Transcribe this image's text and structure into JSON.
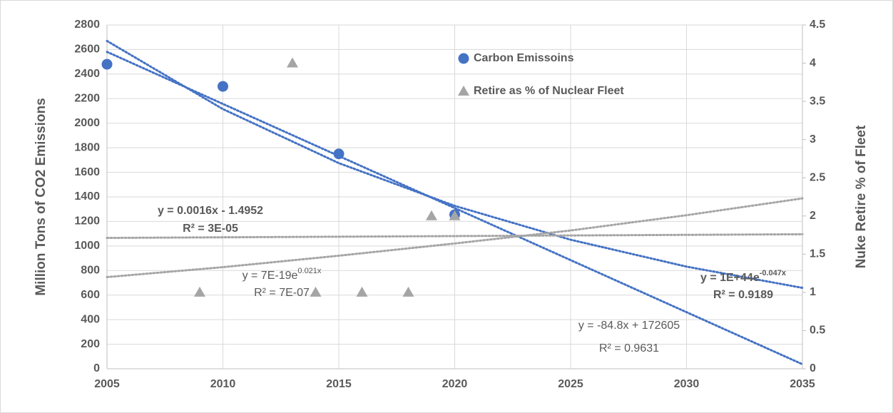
{
  "chart_data": {
    "type": "scatter",
    "y_label": "Million Tons of CO2 Emissions",
    "y2_label": "Nuke Retire % of Fleet",
    "xlim": [
      2005,
      2035
    ],
    "xticks": [
      2005,
      2010,
      2015,
      2020,
      2025,
      2030,
      2035
    ],
    "ylim": [
      0,
      2800
    ],
    "yticks": [
      0,
      200,
      400,
      600,
      800,
      1000,
      1200,
      1400,
      1600,
      1800,
      2000,
      2200,
      2400,
      2600,
      2800
    ],
    "y2lim": [
      0,
      4.5
    ],
    "y2ticks": [
      0,
      0.5,
      1,
      1.5,
      2,
      2.5,
      3,
      3.5,
      4,
      4.5
    ],
    "grid": true,
    "series": [
      {
        "name": "Carbon Emissoins",
        "color": "#4472c4",
        "marker": "circle",
        "x": [
          2005,
          2010,
          2015,
          2020
        ],
        "values": [
          2480,
          2300,
          1750,
          1255
        ]
      },
      {
        "name": "Retire as % of Nuclear Fleet",
        "color": "#a5a5a5",
        "marker": "triangle",
        "axis": "y2",
        "x": [
          2009,
          2013,
          2014,
          2016,
          2018,
          2019,
          2020
        ],
        "values": [
          1,
          4,
          1,
          1,
          1,
          2,
          2
        ]
      }
    ],
    "trendlines": [
      {
        "color": "#4472c4",
        "x": [
          2005,
          2035
        ],
        "values": [
          2581,
          37
        ]
      },
      {
        "color": "#4472c4",
        "x": [
          2005,
          2010,
          2015,
          2020,
          2025,
          2030,
          2035
        ],
        "values": [
          2670,
          2115,
          1675,
          1327,
          1051,
          832,
          659
        ]
      },
      {
        "color": "#a5a5a5",
        "axis": "y2",
        "x": [
          2005,
          2035
        ],
        "values": [
          1.7128,
          1.7608
        ]
      },
      {
        "color": "#a5a5a5",
        "axis": "y2",
        "x": [
          2005,
          2010,
          2015,
          2020,
          2025,
          2030,
          2035
        ],
        "values": [
          1.2,
          1.33,
          1.48,
          1.64,
          1.81,
          2.01,
          2.23
        ]
      }
    ],
    "annotations": [
      {
        "bold": true,
        "lines": [
          {
            "text": "y = 0.0016x - 1.4952"
          },
          {
            "text": "R² = 3E-05"
          }
        ]
      },
      {
        "bold": false,
        "lines": [
          {
            "text": "y = 7E-19e",
            "sup": "0.021x"
          },
          {
            "text": "R² = 7E-07"
          }
        ]
      },
      {
        "bold": true,
        "lines": [
          {
            "text": "y = 1E+44e",
            "sup": "-0.047x"
          },
          {
            "text": "R² = 0.9189"
          }
        ]
      },
      {
        "bold": false,
        "lines": [
          {
            "text": "y = -84.8x + 172605"
          },
          {
            "text": "R² = 0.9631"
          }
        ]
      }
    ]
  }
}
